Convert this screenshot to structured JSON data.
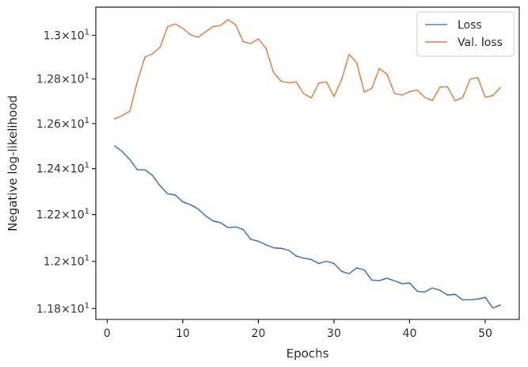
{
  "chart_data": {
    "type": "line",
    "xlabel": "Epochs",
    "ylabel": "Negative log-likelihood",
    "xlim": [
      -1.5,
      54.5
    ],
    "ylim": [
      11.755,
      13.13
    ],
    "y_scale": "log",
    "grid": false,
    "legend_position": "top-right",
    "x_ticks": [
      0,
      10,
      20,
      30,
      40,
      50
    ],
    "x_tick_labels": [
      "0",
      "10",
      "20",
      "30",
      "40",
      "50"
    ],
    "y_ticks": [
      11.8,
      12.0,
      12.2,
      12.4,
      12.6,
      12.8,
      13.0
    ],
    "y_tick_labels": [
      {
        "mantissa": "1.18",
        "exponent": "1"
      },
      {
        "mantissa": "1.2",
        "exponent": "1"
      },
      {
        "mantissa": "1.22",
        "exponent": "1"
      },
      {
        "mantissa": "1.24",
        "exponent": "1"
      },
      {
        "mantissa": "1.26",
        "exponent": "1"
      },
      {
        "mantissa": "1.28",
        "exponent": "1"
      },
      {
        "mantissa": "1.3",
        "exponent": "1"
      }
    ],
    "tick_label_times": "×",
    "tick_label_base": "10",
    "x": [
      1,
      2,
      3,
      4,
      5,
      6,
      7,
      8,
      9,
      10,
      11,
      12,
      13,
      14,
      15,
      16,
      17,
      18,
      19,
      20,
      21,
      22,
      23,
      24,
      25,
      26,
      27,
      28,
      29,
      30,
      31,
      32,
      33,
      34,
      35,
      36,
      37,
      38,
      39,
      40,
      41,
      42,
      43,
      44,
      45,
      46,
      47,
      48,
      49,
      50,
      51,
      52
    ],
    "series": [
      {
        "name": "Loss",
        "color": "#4c72b0",
        "values": [
          12.5,
          12.475,
          12.44,
          12.395,
          12.395,
          12.37,
          12.325,
          12.29,
          12.285,
          12.255,
          12.243,
          12.225,
          12.195,
          12.172,
          12.165,
          12.143,
          12.147,
          12.135,
          12.093,
          12.085,
          12.07,
          12.057,
          12.055,
          12.047,
          12.022,
          12.013,
          12.007,
          11.99,
          12.0,
          11.99,
          11.957,
          11.947,
          11.972,
          11.963,
          11.92,
          11.918,
          11.928,
          11.917,
          11.905,
          11.908,
          11.873,
          11.87,
          11.887,
          11.877,
          11.857,
          11.86,
          11.837,
          11.838,
          11.84,
          11.847,
          11.803,
          11.815
        ]
      },
      {
        "name": "Val. loss",
        "color": "#dd8452",
        "values": [
          12.62,
          12.635,
          12.655,
          12.79,
          12.9,
          12.915,
          12.945,
          13.04,
          13.052,
          13.032,
          13.003,
          12.99,
          13.015,
          13.04,
          13.045,
          13.072,
          13.048,
          12.97,
          12.962,
          12.983,
          12.94,
          12.83,
          12.79,
          12.783,
          12.787,
          12.733,
          12.715,
          12.782,
          12.787,
          12.721,
          12.797,
          12.912,
          12.874,
          12.741,
          12.758,
          12.848,
          12.822,
          12.735,
          12.727,
          12.743,
          12.75,
          12.717,
          12.703,
          12.763,
          12.765,
          12.702,
          12.715,
          12.799,
          12.807,
          12.718,
          12.725,
          12.761
        ]
      }
    ]
  }
}
